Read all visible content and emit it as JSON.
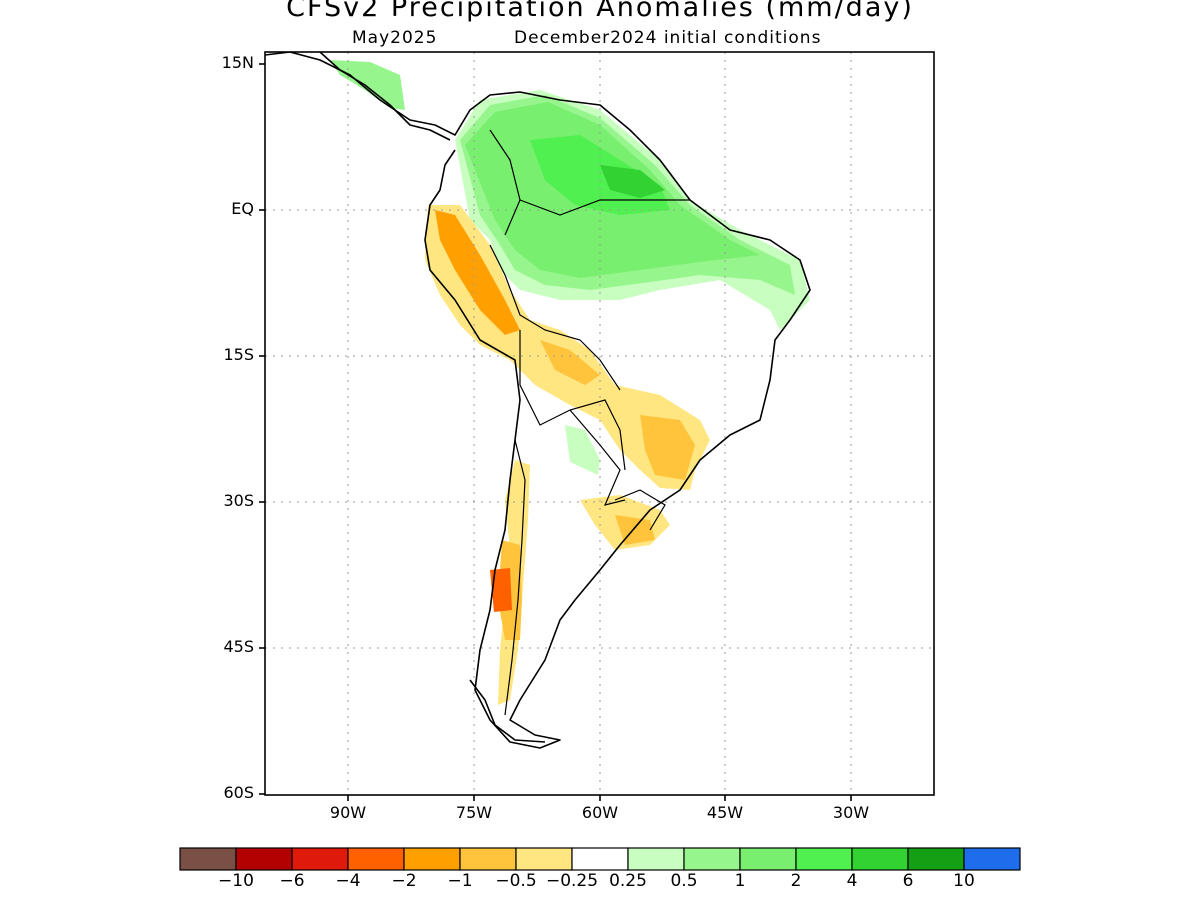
{
  "title": "CFSv2 Precipitation Anomalies (mm/day)",
  "subtitle_month": "May2025",
  "subtitle_init": "December2024 initial conditions",
  "axes": {
    "lat_labels": [
      "15N",
      "EQ",
      "15S",
      "30S",
      "45S",
      "60S"
    ],
    "lon_labels": [
      "90W",
      "75W",
      "60W",
      "45W",
      "30W"
    ]
  },
  "colorbar": {
    "colors": [
      "#7a5046",
      "#b30000",
      "#e01a0b",
      "#ff6000",
      "#ffa000",
      "#ffc43c",
      "#ffe680",
      "#ffffff",
      "#c8ffc0",
      "#96f58c",
      "#78ef6e",
      "#50f050",
      "#32d232",
      "#14a014",
      "#1e6eeb"
    ],
    "labels": [
      "-10",
      "-6",
      "-4",
      "-2",
      "-1",
      "-0.5",
      "-0.25",
      "0.25",
      "0.5",
      "1",
      "2",
      "4",
      "6",
      "10"
    ]
  },
  "map_colors": {
    "green_light": "#c8ffc0",
    "green_mid": "#96f58c",
    "green": "#78ef6e",
    "green_strong": "#50f050",
    "green_dark": "#32d232",
    "yellow": "#ffe680",
    "orange_light": "#ffc43c",
    "orange": "#ffa000",
    "red_orange": "#ff6000"
  }
}
